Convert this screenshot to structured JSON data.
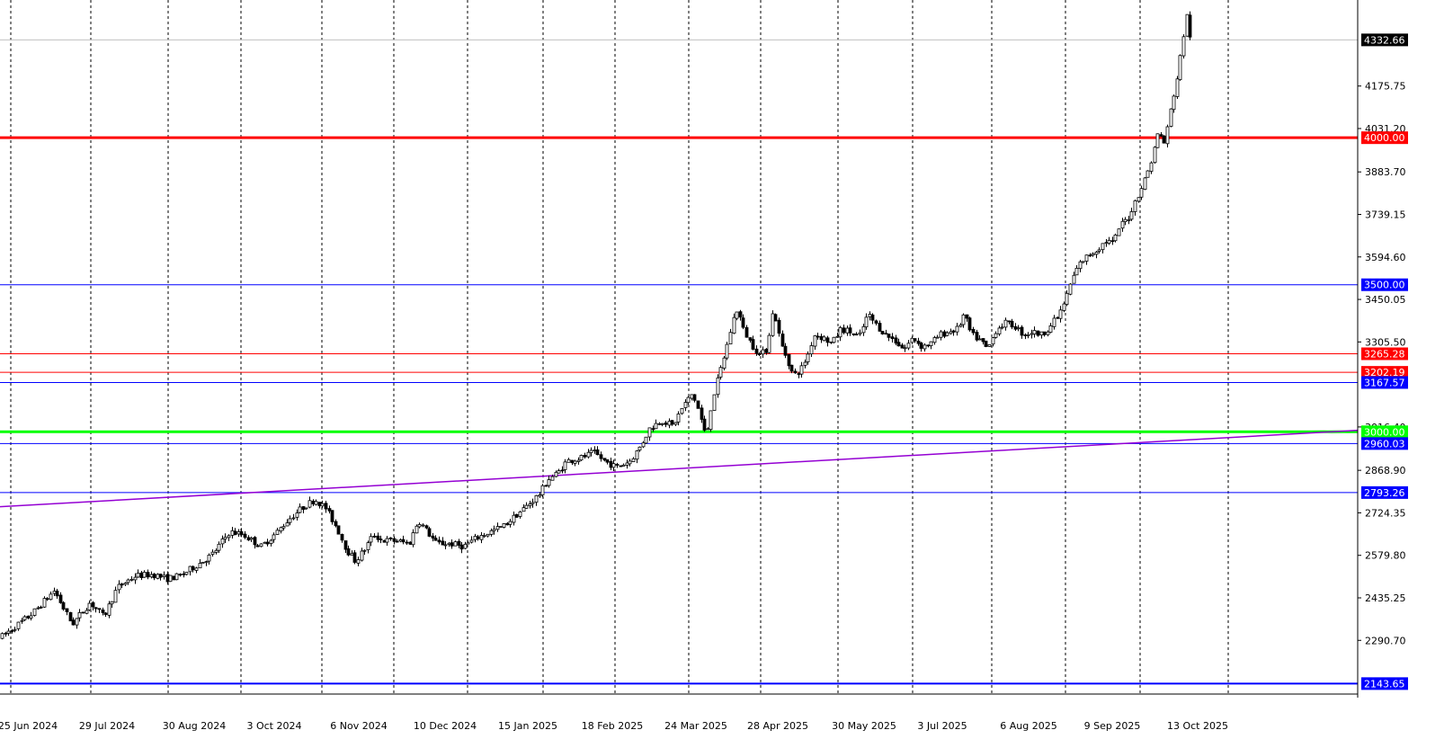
{
  "chart_data": {
    "type": "candlestick",
    "x_dates": [
      "25 Jun 2024",
      "29 Jul 2024",
      "30 Aug 2024",
      "3 Oct 2024",
      "6 Nov 2024",
      "10 Dec 2024",
      "15 Jan 2025",
      "18 Feb 2025",
      "24 Mar 2025",
      "28 Apr 2025",
      "30 May 2025",
      "3 Jul 2025",
      "6 Aug 2025",
      "9 Sep 2025",
      "13 Oct 2025"
    ],
    "y_ticks": [
      "4175.75",
      "4031.20",
      "3883.70",
      "3739.15",
      "3594.60",
      "3450.05",
      "3305.50",
      "3016.40",
      "2868.90",
      "2724.35",
      "2579.80",
      "2435.25",
      "2290.70"
    ],
    "ylim": [
      2120,
      4440
    ],
    "current_price": "4332.66",
    "horizontal_levels": [
      {
        "price": 4000.0,
        "label": "4000.00",
        "color": "#ff0000",
        "width": 3
      },
      {
        "price": 3500.0,
        "label": "3500.00",
        "color": "#0000ff",
        "width": 1
      },
      {
        "price": 3265.28,
        "label": "3265.28",
        "color": "#ff0000",
        "width": 1
      },
      {
        "price": 3202.19,
        "label": "3202.19",
        "color": "#ff0000",
        "width": 1
      },
      {
        "price": 3167.57,
        "label": "3167.57",
        "color": "#0000ff",
        "width": 1
      },
      {
        "price": 3000.0,
        "label": "3000.00",
        "color": "#00ff00",
        "width": 3
      },
      {
        "price": 2960.03,
        "label": "2960.03",
        "color": "#0000ff",
        "width": 1
      },
      {
        "price": 2793.26,
        "label": "2793.26",
        "color": "#0000ff",
        "width": 1
      },
      {
        "price": 2143.65,
        "label": "2143.65",
        "color": "#0000ff",
        "width": 2
      }
    ],
    "trendline": {
      "color": "#9400d3",
      "start_price": 2745,
      "end_price": 3005
    },
    "price_path": [
      [
        0,
        2300
      ],
      [
        35,
        2380
      ],
      [
        60,
        2460
      ],
      [
        80,
        2345
      ],
      [
        100,
        2420
      ],
      [
        115,
        2370
      ],
      [
        130,
        2470
      ],
      [
        150,
        2510
      ],
      [
        170,
        2515
      ],
      [
        185,
        2500
      ],
      [
        200,
        2510
      ],
      [
        215,
        2540
      ],
      [
        235,
        2580
      ],
      [
        255,
        2660
      ],
      [
        270,
        2650
      ],
      [
        290,
        2610
      ],
      [
        305,
        2650
      ],
      [
        320,
        2700
      ],
      [
        335,
        2740
      ],
      [
        350,
        2770
      ],
      [
        362,
        2740
      ],
      [
        375,
        2670
      ],
      [
        385,
        2600
      ],
      [
        395,
        2560
      ],
      [
        405,
        2600
      ],
      [
        415,
        2650
      ],
      [
        425,
        2630
      ],
      [
        440,
        2630
      ],
      [
        455,
        2620
      ],
      [
        465,
        2700
      ],
      [
        475,
        2660
      ],
      [
        485,
        2620
      ],
      [
        500,
        2620
      ],
      [
        515,
        2610
      ],
      [
        530,
        2640
      ],
      [
        545,
        2660
      ],
      [
        560,
        2680
      ],
      [
        575,
        2720
      ],
      [
        590,
        2760
      ],
      [
        600,
        2790
      ],
      [
        610,
        2840
      ],
      [
        620,
        2860
      ],
      [
        630,
        2900
      ],
      [
        645,
        2910
      ],
      [
        660,
        2930
      ],
      [
        672,
        2900
      ],
      [
        685,
        2880
      ],
      [
        700,
        2900
      ],
      [
        712,
        2950
      ],
      [
        722,
        3010
      ],
      [
        735,
        3040
      ],
      [
        748,
        3020
      ],
      [
        760,
        3090
      ],
      [
        770,
        3130
      ],
      [
        777,
        3070
      ],
      [
        785,
        2980
      ],
      [
        792,
        3110
      ],
      [
        800,
        3200
      ],
      [
        808,
        3290
      ],
      [
        815,
        3380
      ],
      [
        820,
        3420
      ],
      [
        826,
        3350
      ],
      [
        835,
        3300
      ],
      [
        845,
        3260
      ],
      [
        852,
        3280
      ],
      [
        860,
        3420
      ],
      [
        868,
        3300
      ],
      [
        875,
        3250
      ],
      [
        882,
        3190
      ],
      [
        890,
        3210
      ],
      [
        898,
        3260
      ],
      [
        905,
        3330
      ],
      [
        915,
        3320
      ],
      [
        925,
        3300
      ],
      [
        935,
        3350
      ],
      [
        945,
        3340
      ],
      [
        955,
        3320
      ],
      [
        965,
        3400
      ],
      [
        975,
        3360
      ],
      [
        985,
        3330
      ],
      [
        995,
        3310
      ],
      [
        1005,
        3280
      ],
      [
        1015,
        3320
      ],
      [
        1025,
        3290
      ],
      [
        1035,
        3300
      ],
      [
        1045,
        3330
      ],
      [
        1055,
        3340
      ],
      [
        1065,
        3350
      ],
      [
        1072,
        3400
      ],
      [
        1080,
        3330
      ],
      [
        1090,
        3310
      ],
      [
        1098,
        3280
      ],
      [
        1108,
        3350
      ],
      [
        1118,
        3370
      ],
      [
        1128,
        3360
      ],
      [
        1138,
        3330
      ],
      [
        1148,
        3340
      ],
      [
        1158,
        3330
      ],
      [
        1168,
        3360
      ],
      [
        1178,
        3400
      ],
      [
        1186,
        3460
      ],
      [
        1192,
        3520
      ],
      [
        1200,
        3570
      ],
      [
        1210,
        3600
      ],
      [
        1220,
        3620
      ],
      [
        1230,
        3650
      ],
      [
        1238,
        3640
      ],
      [
        1245,
        3700
      ],
      [
        1255,
        3730
      ],
      [
        1263,
        3790
      ],
      [
        1272,
        3850
      ],
      [
        1280,
        3920
      ],
      [
        1288,
        4020
      ],
      [
        1295,
        3980
      ],
      [
        1302,
        4100
      ],
      [
        1310,
        4220
      ],
      [
        1316,
        4350
      ],
      [
        1320,
        4420
      ],
      [
        1324,
        4330
      ]
    ]
  }
}
